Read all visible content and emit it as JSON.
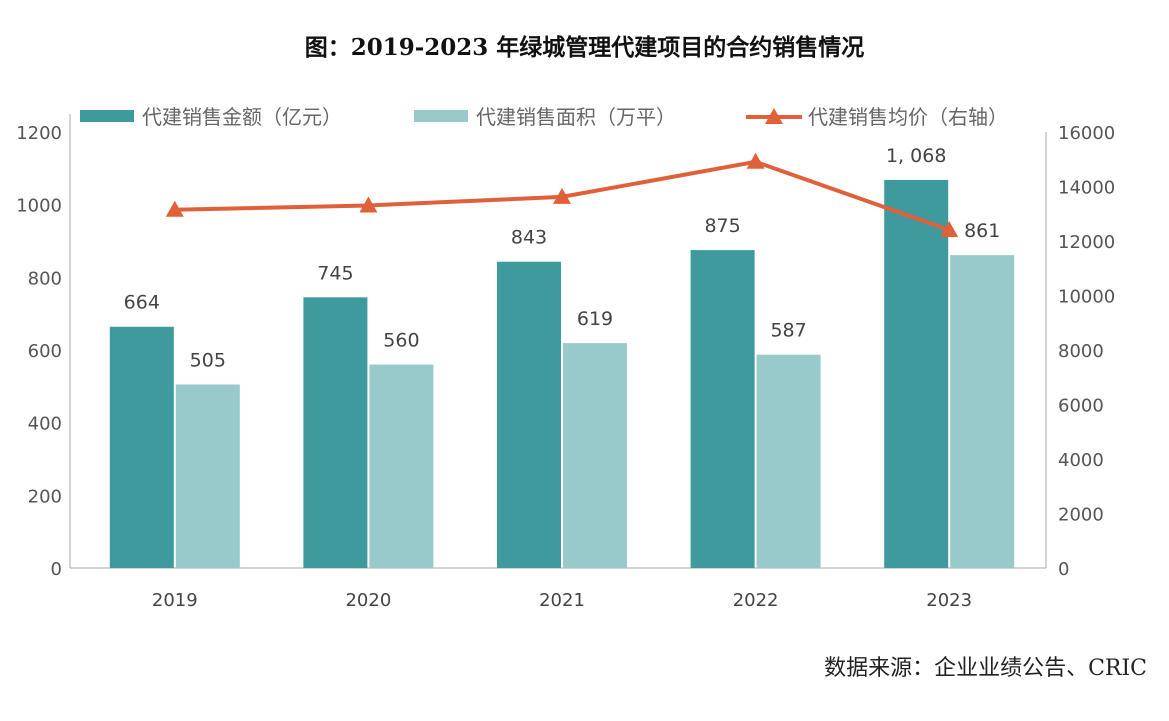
{
  "chart_data": {
    "type": "bar",
    "title": "图：2019-2023 年绿城管理代建项目的合约销售情况",
    "categories": [
      "2019",
      "2020",
      "2021",
      "2022",
      "2023"
    ],
    "series": [
      {
        "name": "代建销售金额（亿元）",
        "kind": "bar",
        "axis": "left",
        "color": "#3e9a9c",
        "values": [
          664,
          745,
          843,
          875,
          1068
        ],
        "labels": [
          "664",
          "745",
          "843",
          "875",
          "1, 068"
        ]
      },
      {
        "name": "代建销售面积（万平）",
        "kind": "bar",
        "axis": "left",
        "color": "#98c9cb",
        "values": [
          505,
          560,
          619,
          587,
          861
        ],
        "labels": [
          "505",
          "560",
          "619",
          "587",
          "861"
        ]
      },
      {
        "name": "代建销售均价（右轴）",
        "kind": "line",
        "axis": "right",
        "color": "#e0603a",
        "values": [
          13149,
          13304,
          13619,
          14906,
          12404
        ]
      }
    ],
    "ylim": [
      0,
      1200
    ],
    "y_ticks": [
      "0",
      "200",
      "400",
      "600",
      "800",
      "1000",
      "1200"
    ],
    "y2lim": [
      0,
      16000
    ],
    "y2_ticks": [
      "0",
      "2000",
      "4000",
      "6000",
      "8000",
      "10000",
      "12000",
      "14000",
      "16000"
    ],
    "legend": "top",
    "grid": false,
    "source": "数据来源：企业业绩公告、CRIC"
  }
}
